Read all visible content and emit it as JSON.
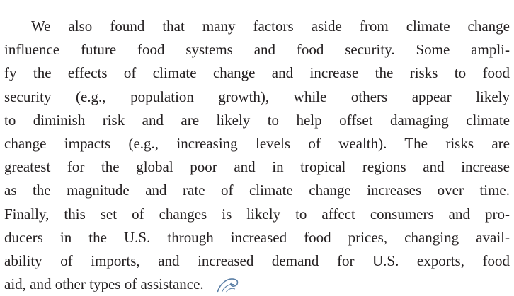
{
  "paragraph": {
    "lines": [
      "We also found that many factors aside from climate change",
      "influence future food systems and food security. Some ampli-",
      "fy the effects of climate change and increase the risks to food",
      "security (e.g., population growth), while others appear likely",
      "to diminish risk and are likely to help offset damaging climate",
      "change impacts (e.g., increasing levels of wealth). The risks are",
      "greatest for the global poor and in tropical regions and increase",
      "as the magnitude and rate of climate change increases over time.",
      "Finally, this set of changes is likely to affect consumers and pro-",
      "ducers in the U.S. through increased food prices, changing avail-",
      "ability of imports, and increased demand for U.S. exports, food",
      "aid, and other types of assistance."
    ]
  }
}
